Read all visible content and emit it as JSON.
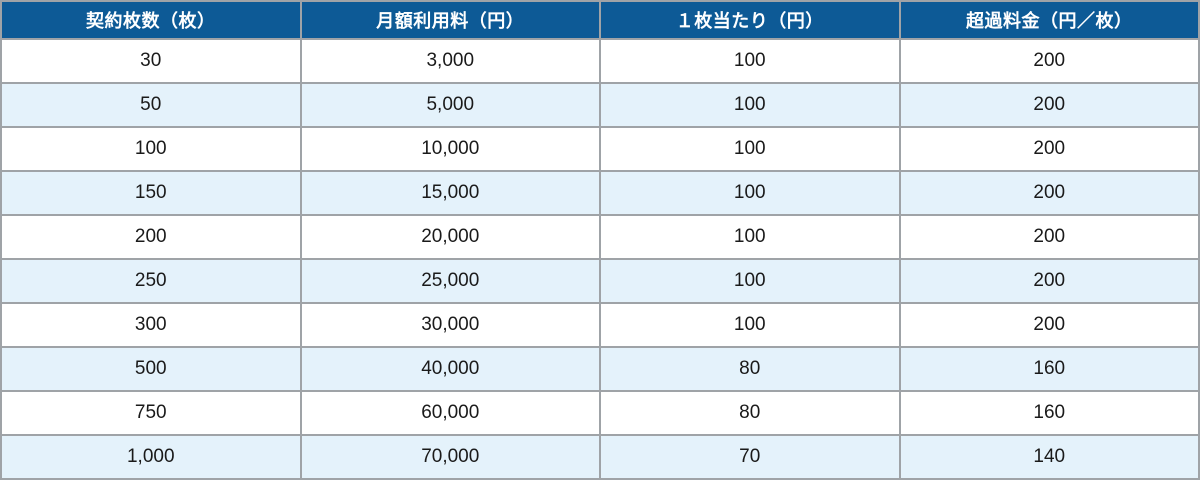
{
  "colors": {
    "header_bg": "#0d5a96",
    "header_text": "#ffffff",
    "row_bg": "#ffffff",
    "row_alt_bg": "#e4f2fb",
    "border": "#9fa3a7",
    "text": "#1a1a1a"
  },
  "chart_data": {
    "type": "table",
    "title": "",
    "columns": [
      "契約枚数（枚）",
      "月額利用料（円）",
      "１枚当たり（円）",
      "超過料金（円／枚）"
    ],
    "rows": [
      [
        "30",
        "3,000",
        "100",
        "200"
      ],
      [
        "50",
        "5,000",
        "100",
        "200"
      ],
      [
        "100",
        "10,000",
        "100",
        "200"
      ],
      [
        "150",
        "15,000",
        "100",
        "200"
      ],
      [
        "200",
        "20,000",
        "100",
        "200"
      ],
      [
        "250",
        "25,000",
        "100",
        "200"
      ],
      [
        "300",
        "30,000",
        "100",
        "200"
      ],
      [
        "500",
        "40,000",
        "80",
        "160"
      ],
      [
        "750",
        "60,000",
        "80",
        "160"
      ],
      [
        "1,000",
        "70,000",
        "70",
        "140"
      ]
    ],
    "layout": {
      "zebra_striping": true,
      "first_data_row_background": "white",
      "column_count": 4,
      "row_count": 10
    }
  }
}
